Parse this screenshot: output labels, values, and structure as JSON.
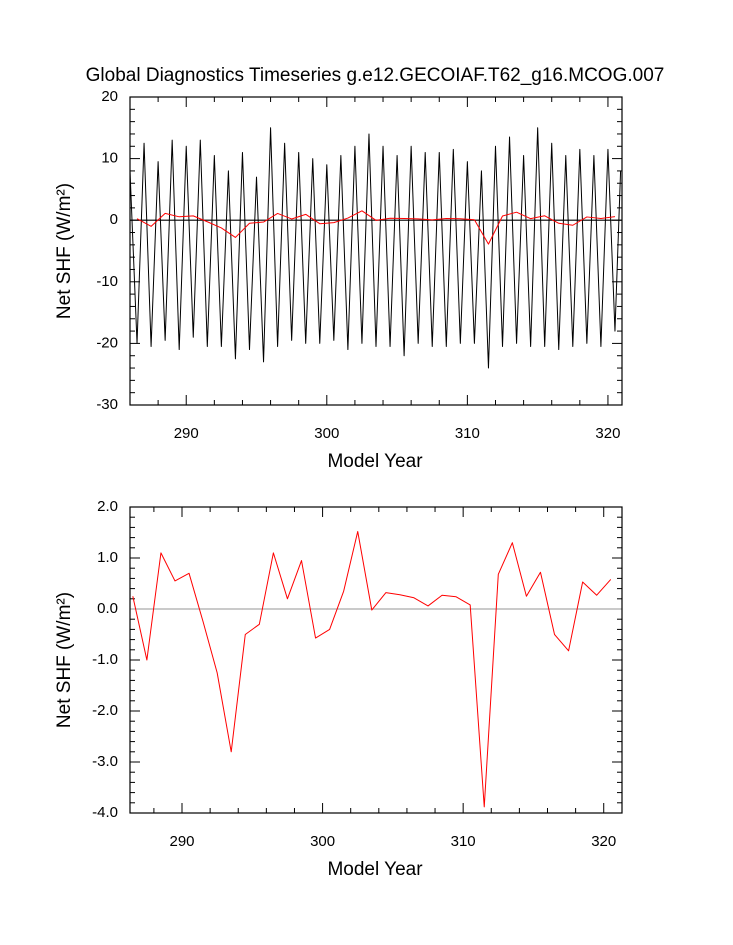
{
  "chart_data": [
    {
      "type": "line",
      "title": "Global Diagnostics Timeseries g.e12.GECOIAF.T62_g16.MCOG.007",
      "x_label": "Model Year",
      "y_label": "Net SHF (W/m²)",
      "xlim": [
        286,
        321
      ],
      "xticks": [
        290,
        300,
        310,
        320
      ],
      "ylim": [
        -30,
        20
      ],
      "yticks": [
        -30,
        -20,
        -10,
        0,
        10,
        20
      ],
      "zero_line": "#000000",
      "series": [
        {
          "color": "#000000",
          "x": [
            286,
            286.5,
            287,
            287.5,
            288,
            288.5,
            289,
            289.5,
            290,
            290.5,
            291,
            291.5,
            292,
            292.5,
            293,
            293.5,
            294,
            294.5,
            295,
            295.5,
            296,
            296.5,
            297,
            297.5,
            298,
            298.5,
            299,
            299.5,
            300,
            300.5,
            301,
            301.5,
            302,
            302.5,
            303,
            303.5,
            304,
            304.5,
            305,
            305.5,
            306,
            306.5,
            307,
            307.5,
            308,
            308.5,
            309,
            309.5,
            310,
            310.5,
            311,
            311.5,
            312,
            312.5,
            313,
            313.5,
            314,
            314.5,
            315,
            315.5,
            316,
            316.5,
            317,
            317.5,
            318,
            318.5,
            319,
            319.5,
            320,
            320.5,
            320.9
          ],
          "values": [
            8,
            -20,
            12.5,
            -20.5,
            9.5,
            -19.5,
            13,
            -21,
            12,
            -19,
            13,
            -20.5,
            10.5,
            -20.5,
            8,
            -22.5,
            11,
            -21,
            7,
            -23,
            15,
            -20.5,
            12.5,
            -19.5,
            11,
            -20,
            10,
            -20,
            9,
            -19.5,
            10.5,
            -21,
            12,
            -20,
            14,
            -20.5,
            12,
            -20.5,
            10.5,
            -22,
            12,
            -20,
            11,
            -20.5,
            11,
            -20.5,
            11.5,
            -20,
            9.5,
            -20,
            8,
            -24,
            12,
            -20.5,
            13.5,
            -20,
            10.5,
            -20.5,
            15,
            -20.5,
            12.5,
            -21,
            10.5,
            -20.5,
            11.5,
            -20,
            10.5,
            -20.5,
            11.5,
            -18,
            8
          ]
        },
        {
          "color": "#ff0000",
          "x": [
            286.5,
            287.5,
            288.5,
            289.5,
            290.5,
            291.5,
            292.5,
            293.5,
            294.5,
            295.5,
            296.5,
            297.5,
            298.5,
            299.5,
            300.5,
            301.5,
            302.5,
            303.5,
            304.5,
            305.5,
            306.5,
            307.5,
            308.5,
            309.5,
            310.5,
            311.5,
            312.5,
            313.5,
            314.5,
            315.5,
            316.5,
            317.5,
            318.5,
            319.5,
            320.5
          ],
          "values": [
            0.25,
            -1.0,
            1.1,
            0.55,
            0.7,
            -0.25,
            -1.25,
            -2.8,
            -0.5,
            -0.3,
            1.1,
            0.2,
            0.95,
            -0.57,
            -0.4,
            0.35,
            1.52,
            -0.02,
            0.32,
            0.28,
            0.22,
            0.06,
            0.27,
            0.24,
            0.08,
            -3.88,
            0.68,
            1.3,
            0.25,
            0.72,
            -0.5,
            -0.82,
            0.53,
            0.27,
            0.58
          ]
        }
      ]
    },
    {
      "type": "line",
      "x_label": "Model Year",
      "y_label": "Net SHF (W/m²)",
      "xlim": [
        286.3,
        321.3
      ],
      "xticks": [
        290,
        300,
        310,
        320
      ],
      "ylim": [
        -4,
        2
      ],
      "yticks": [
        {
          "value": -4,
          "label": "-4.0"
        },
        {
          "value": -3,
          "label": "-3.0"
        },
        {
          "value": -2,
          "label": "-2.0"
        },
        {
          "value": -1,
          "label": "-1.0"
        },
        {
          "value": 0,
          "label": "0.0"
        },
        {
          "value": 1,
          "label": "1.0"
        },
        {
          "value": 2,
          "label": "2.0"
        }
      ],
      "zero_line": "#aaaaaa",
      "series": [
        {
          "color": "#ff0000",
          "x": [
            286.5,
            287.5,
            288.5,
            289.5,
            290.5,
            291.5,
            292.5,
            293.5,
            294.5,
            295.5,
            296.5,
            297.5,
            298.5,
            299.5,
            300.5,
            301.5,
            302.5,
            303.5,
            304.5,
            305.5,
            306.5,
            307.5,
            308.5,
            309.5,
            310.5,
            311.5,
            312.5,
            313.5,
            314.5,
            315.5,
            316.5,
            317.5,
            318.5,
            319.5,
            320.5
          ],
          "values": [
            0.25,
            -1.0,
            1.1,
            0.55,
            0.7,
            -0.25,
            -1.25,
            -2.8,
            -0.5,
            -0.3,
            1.1,
            0.2,
            0.95,
            -0.57,
            -0.4,
            0.35,
            1.52,
            -0.02,
            0.32,
            0.28,
            0.22,
            0.06,
            0.27,
            0.24,
            0.08,
            -3.88,
            0.68,
            1.3,
            0.25,
            0.72,
            -0.5,
            -0.82,
            0.53,
            0.27,
            0.58
          ]
        }
      ]
    }
  ]
}
